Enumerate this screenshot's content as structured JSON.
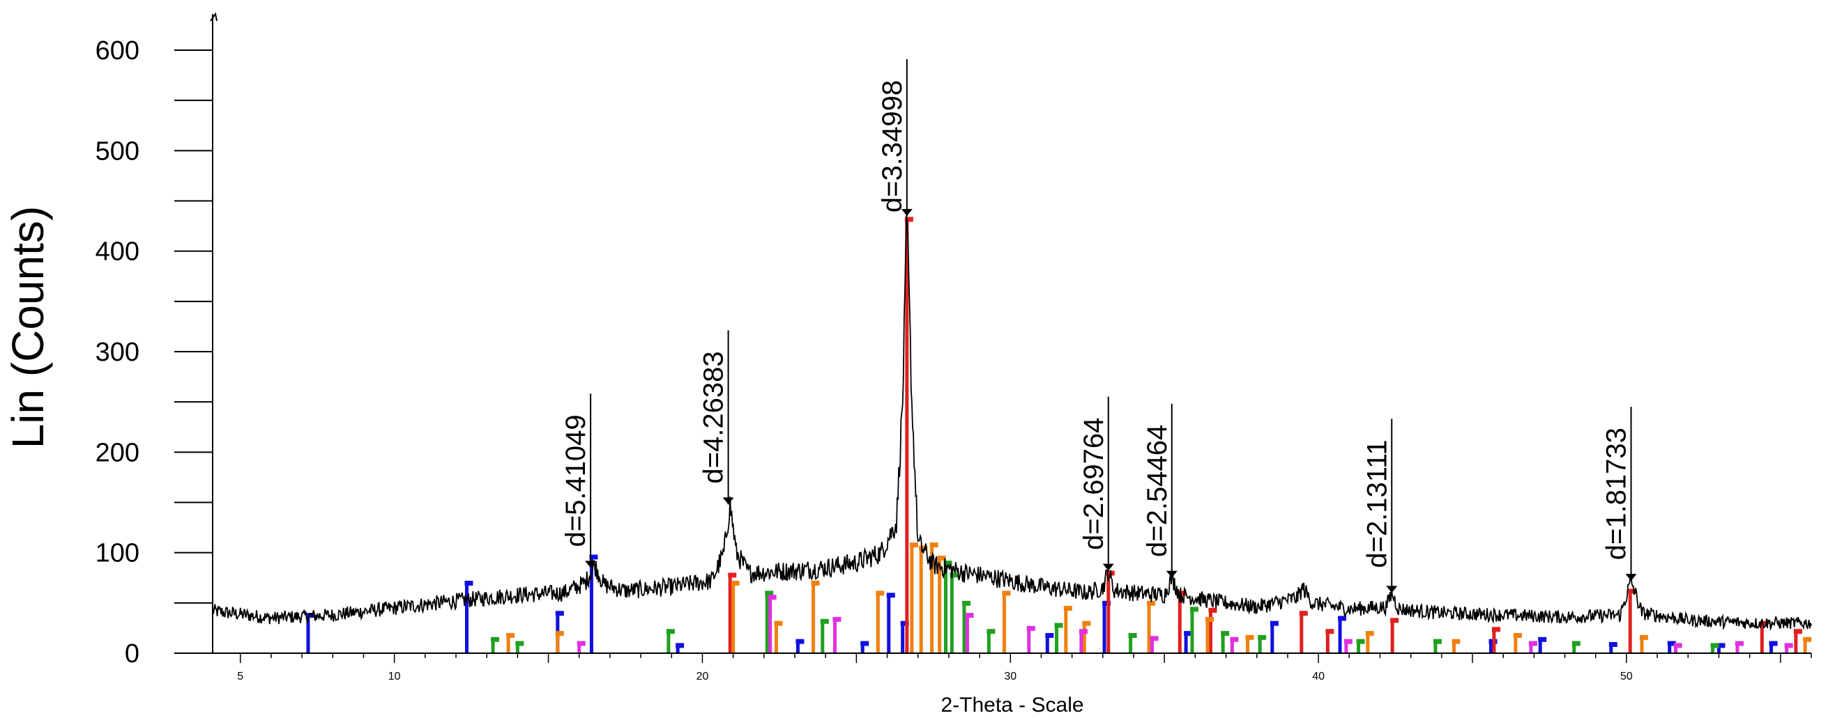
{
  "chart_data": {
    "type": "line",
    "title": "",
    "xlabel": "2-Theta - Scale",
    "ylabel": "Lin (Counts)",
    "xlim": [
      4.1,
      56
    ],
    "ylim": [
      0,
      600
    ],
    "y_ticks": [
      0,
      100,
      200,
      300,
      400,
      500,
      600
    ],
    "x_ticks": [
      5,
      10,
      20,
      30,
      40,
      50
    ],
    "grid": false,
    "legend": "none",
    "series": [
      {
        "color": "#000000",
        "points": [
          [
            4.1,
            42
          ],
          [
            6,
            35
          ],
          [
            8,
            38
          ],
          [
            10,
            45
          ],
          [
            12,
            52
          ],
          [
            14,
            58
          ],
          [
            15.5,
            60
          ],
          [
            16.2,
            70
          ],
          [
            16.5,
            88
          ],
          [
            16.8,
            68
          ],
          [
            17.5,
            62
          ],
          [
            19,
            66
          ],
          [
            20.3,
            72
          ],
          [
            20.7,
            100
          ],
          [
            20.9,
            148
          ],
          [
            21.1,
            100
          ],
          [
            21.5,
            80
          ],
          [
            23,
            82
          ],
          [
            24,
            85
          ],
          [
            25,
            90
          ],
          [
            25.8,
            100
          ],
          [
            26.1,
            118
          ],
          [
            26.3,
            130
          ],
          [
            26.5,
            250
          ],
          [
            26.64,
            435
          ],
          [
            26.8,
            250
          ],
          [
            27,
            110
          ],
          [
            27.5,
            88
          ],
          [
            28.5,
            80
          ],
          [
            29.5,
            75
          ],
          [
            31,
            66
          ],
          [
            32.5,
            60
          ],
          [
            33.0,
            65
          ],
          [
            33.18,
            82
          ],
          [
            33.35,
            63
          ],
          [
            34,
            60
          ],
          [
            35.0,
            58
          ],
          [
            35.24,
            75
          ],
          [
            35.5,
            58
          ],
          [
            36.5,
            52
          ],
          [
            38,
            46
          ],
          [
            39.3,
            55
          ],
          [
            39.5,
            65
          ],
          [
            39.8,
            50
          ],
          [
            41,
            44
          ],
          [
            42.2,
            46
          ],
          [
            42.38,
            60
          ],
          [
            42.6,
            44
          ],
          [
            44,
            40
          ],
          [
            46,
            38
          ],
          [
            48,
            36
          ],
          [
            49.8,
            38
          ],
          [
            50.15,
            72
          ],
          [
            50.5,
            40
          ],
          [
            52,
            33
          ],
          [
            54,
            30
          ],
          [
            56,
            30
          ]
        ]
      }
    ],
    "peak_labels": [
      {
        "x": 16.37,
        "y": 85,
        "text": "d=5.41049"
      },
      {
        "x": 20.84,
        "y": 148,
        "text": "d=4.26383"
      },
      {
        "x": 26.64,
        "y": 435,
        "text": "d=3.34998"
      },
      {
        "x": 33.18,
        "y": 82,
        "text": "d=2.69764"
      },
      {
        "x": 35.24,
        "y": 75,
        "text": "d=2.54464"
      },
      {
        "x": 42.38,
        "y": 60,
        "text": "d=2.13111"
      },
      {
        "x": 50.15,
        "y": 72,
        "text": "d=1.81733"
      }
    ],
    "reference_phases": [
      {
        "color": "#1010e0",
        "sticks": [
          [
            7.2,
            38
          ],
          [
            12.35,
            70
          ],
          [
            15.3,
            40
          ],
          [
            16.4,
            96
          ],
          [
            19.2,
            8
          ],
          [
            23.1,
            12
          ],
          [
            25.2,
            10
          ],
          [
            26.05,
            58
          ],
          [
            26.5,
            30
          ],
          [
            31.2,
            18
          ],
          [
            33.05,
            50
          ],
          [
            35.7,
            20
          ],
          [
            38.5,
            30
          ],
          [
            40.7,
            35
          ],
          [
            45.6,
            12
          ],
          [
            47.2,
            14
          ],
          [
            49.5,
            9
          ],
          [
            51.4,
            10
          ],
          [
            53.0,
            8
          ],
          [
            54.7,
            10
          ]
        ]
      },
      {
        "color": "#e02020",
        "sticks": [
          [
            20.9,
            78
          ],
          [
            26.64,
            432
          ],
          [
            33.18,
            80
          ],
          [
            35.5,
            60
          ],
          [
            36.5,
            43
          ],
          [
            39.45,
            40
          ],
          [
            40.3,
            22
          ],
          [
            42.4,
            33
          ],
          [
            45.7,
            24
          ],
          [
            50.12,
            62
          ],
          [
            54.4,
            30
          ],
          [
            55.5,
            22
          ]
        ]
      },
      {
        "color": "#f08010",
        "sticks": [
          [
            13.7,
            18
          ],
          [
            15.3,
            20
          ],
          [
            21.0,
            70
          ],
          [
            22.4,
            30
          ],
          [
            23.6,
            70
          ],
          [
            25.7,
            60
          ],
          [
            26.8,
            108
          ],
          [
            27.1,
            105
          ],
          [
            27.45,
            108
          ],
          [
            27.7,
            95
          ],
          [
            29.8,
            60
          ],
          [
            31.8,
            45
          ],
          [
            32.4,
            30
          ],
          [
            34.5,
            50
          ],
          [
            36.4,
            34
          ],
          [
            37.7,
            16
          ],
          [
            41.6,
            20
          ],
          [
            44.4,
            12
          ],
          [
            46.4,
            18
          ],
          [
            50.5,
            16
          ],
          [
            55.8,
            14
          ]
        ]
      },
      {
        "color": "#20a020",
        "sticks": [
          [
            13.2,
            14
          ],
          [
            14.0,
            10
          ],
          [
            18.9,
            22
          ],
          [
            22.1,
            60
          ],
          [
            23.9,
            32
          ],
          [
            27.9,
            90
          ],
          [
            28.1,
            78
          ],
          [
            28.5,
            50
          ],
          [
            29.3,
            22
          ],
          [
            31.5,
            28
          ],
          [
            33.9,
            18
          ],
          [
            35.9,
            44
          ],
          [
            36.9,
            20
          ],
          [
            38.1,
            16
          ],
          [
            41.3,
            12
          ],
          [
            43.8,
            12
          ],
          [
            48.3,
            10
          ],
          [
            52.8,
            8
          ]
        ]
      },
      {
        "color": "#e030e0",
        "sticks": [
          [
            16.0,
            10
          ],
          [
            22.2,
            56
          ],
          [
            24.3,
            34
          ],
          [
            28.6,
            38
          ],
          [
            30.6,
            25
          ],
          [
            32.3,
            22
          ],
          [
            34.6,
            15
          ],
          [
            37.2,
            14
          ],
          [
            40.9,
            12
          ],
          [
            46.9,
            10
          ],
          [
            51.6,
            8
          ],
          [
            53.6,
            10
          ],
          [
            55.2,
            8
          ]
        ]
      }
    ]
  }
}
